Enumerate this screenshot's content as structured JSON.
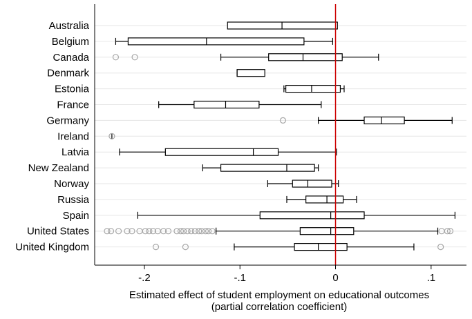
{
  "chart_data": {
    "type": "boxplot",
    "orientation": "horizontal",
    "xlabel_line1": "Estimated effect of student employment on educational outcomes",
    "xlabel_line2": "(partial correlation coefficient)",
    "xlim": [
      -0.252,
      0.137
    ],
    "xticks": [
      -0.2,
      -0.1,
      0,
      0.1
    ],
    "xtick_labels": [
      "-.2",
      "-.1",
      "0",
      ".1"
    ],
    "reference_line": {
      "x": 0,
      "color": "#cc0000"
    },
    "grid": "horizontal",
    "colors": {
      "box": "#000000",
      "outlier": "#a6a6a6",
      "grid": "#e6e6e6",
      "reference": "#cc0000"
    },
    "categories": [
      {
        "name": "Australia",
        "whisker_low": -0.113,
        "q1": -0.113,
        "median": -0.056,
        "q3": 0.002,
        "whisker_high": 0.002,
        "outliers": []
      },
      {
        "name": "Belgium",
        "whisker_low": -0.23,
        "q1": -0.217,
        "median": -0.135,
        "q3": -0.033,
        "whisker_high": -0.003,
        "outliers": []
      },
      {
        "name": "Canada",
        "whisker_low": -0.12,
        "q1": -0.07,
        "median": -0.034,
        "q3": 0.007,
        "whisker_high": 0.045,
        "outliers": [
          -0.23,
          -0.21
        ]
      },
      {
        "name": "Denmark",
        "whisker_low": -0.103,
        "q1": -0.103,
        "median": -0.103,
        "q3": -0.074,
        "whisker_high": -0.074,
        "outliers": []
      },
      {
        "name": "Estonia",
        "whisker_low": -0.054,
        "q1": -0.052,
        "median": -0.025,
        "q3": 0.005,
        "whisker_high": 0.009,
        "outliers": []
      },
      {
        "name": "France",
        "whisker_low": -0.185,
        "q1": -0.148,
        "median": -0.115,
        "q3": -0.08,
        "whisker_high": -0.015,
        "outliers": []
      },
      {
        "name": "Germany",
        "whisker_low": -0.018,
        "q1": 0.03,
        "median": 0.048,
        "q3": 0.072,
        "whisker_high": 0.122,
        "outliers": [
          -0.055
        ]
      },
      {
        "name": "Ireland",
        "whisker_low": -0.234,
        "q1": -0.234,
        "median": -0.234,
        "q3": -0.234,
        "whisker_high": -0.234,
        "outliers": [
          -0.234
        ]
      },
      {
        "name": "Latvia",
        "whisker_low": -0.226,
        "q1": -0.178,
        "median": -0.086,
        "q3": -0.06,
        "whisker_high": 0.001,
        "outliers": []
      },
      {
        "name": "New Zealand",
        "whisker_low": -0.139,
        "q1": -0.12,
        "median": -0.051,
        "q3": -0.022,
        "whisker_high": -0.018,
        "outliers": []
      },
      {
        "name": "Norway",
        "whisker_low": -0.071,
        "q1": -0.045,
        "median": -0.029,
        "q3": -0.004,
        "whisker_high": 0.003,
        "outliers": []
      },
      {
        "name": "Russia",
        "whisker_low": -0.051,
        "q1": -0.031,
        "median": -0.009,
        "q3": 0.008,
        "whisker_high": 0.022,
        "outliers": []
      },
      {
        "name": "Spain",
        "whisker_low": -0.207,
        "q1": -0.079,
        "median": -0.005,
        "q3": 0.03,
        "whisker_high": 0.125,
        "outliers": []
      },
      {
        "name": "United States",
        "whisker_low": -0.125,
        "q1": -0.037,
        "median": -0.005,
        "q3": 0.019,
        "whisker_high": 0.107,
        "outliers": [
          -0.239,
          -0.235,
          -0.227,
          -0.218,
          -0.213,
          -0.205,
          -0.199,
          -0.195,
          -0.191,
          -0.186,
          -0.18,
          -0.175,
          -0.166,
          -0.162,
          -0.159,
          -0.155,
          -0.151,
          -0.147,
          -0.143,
          -0.14,
          -0.136,
          -0.133,
          -0.129,
          0.111,
          0.117,
          0.12
        ]
      },
      {
        "name": "United Kingdom",
        "whisker_low": -0.106,
        "q1": -0.043,
        "median": -0.018,
        "q3": 0.012,
        "whisker_high": 0.082,
        "outliers": [
          -0.188,
          -0.157,
          0.11
        ]
      }
    ]
  }
}
